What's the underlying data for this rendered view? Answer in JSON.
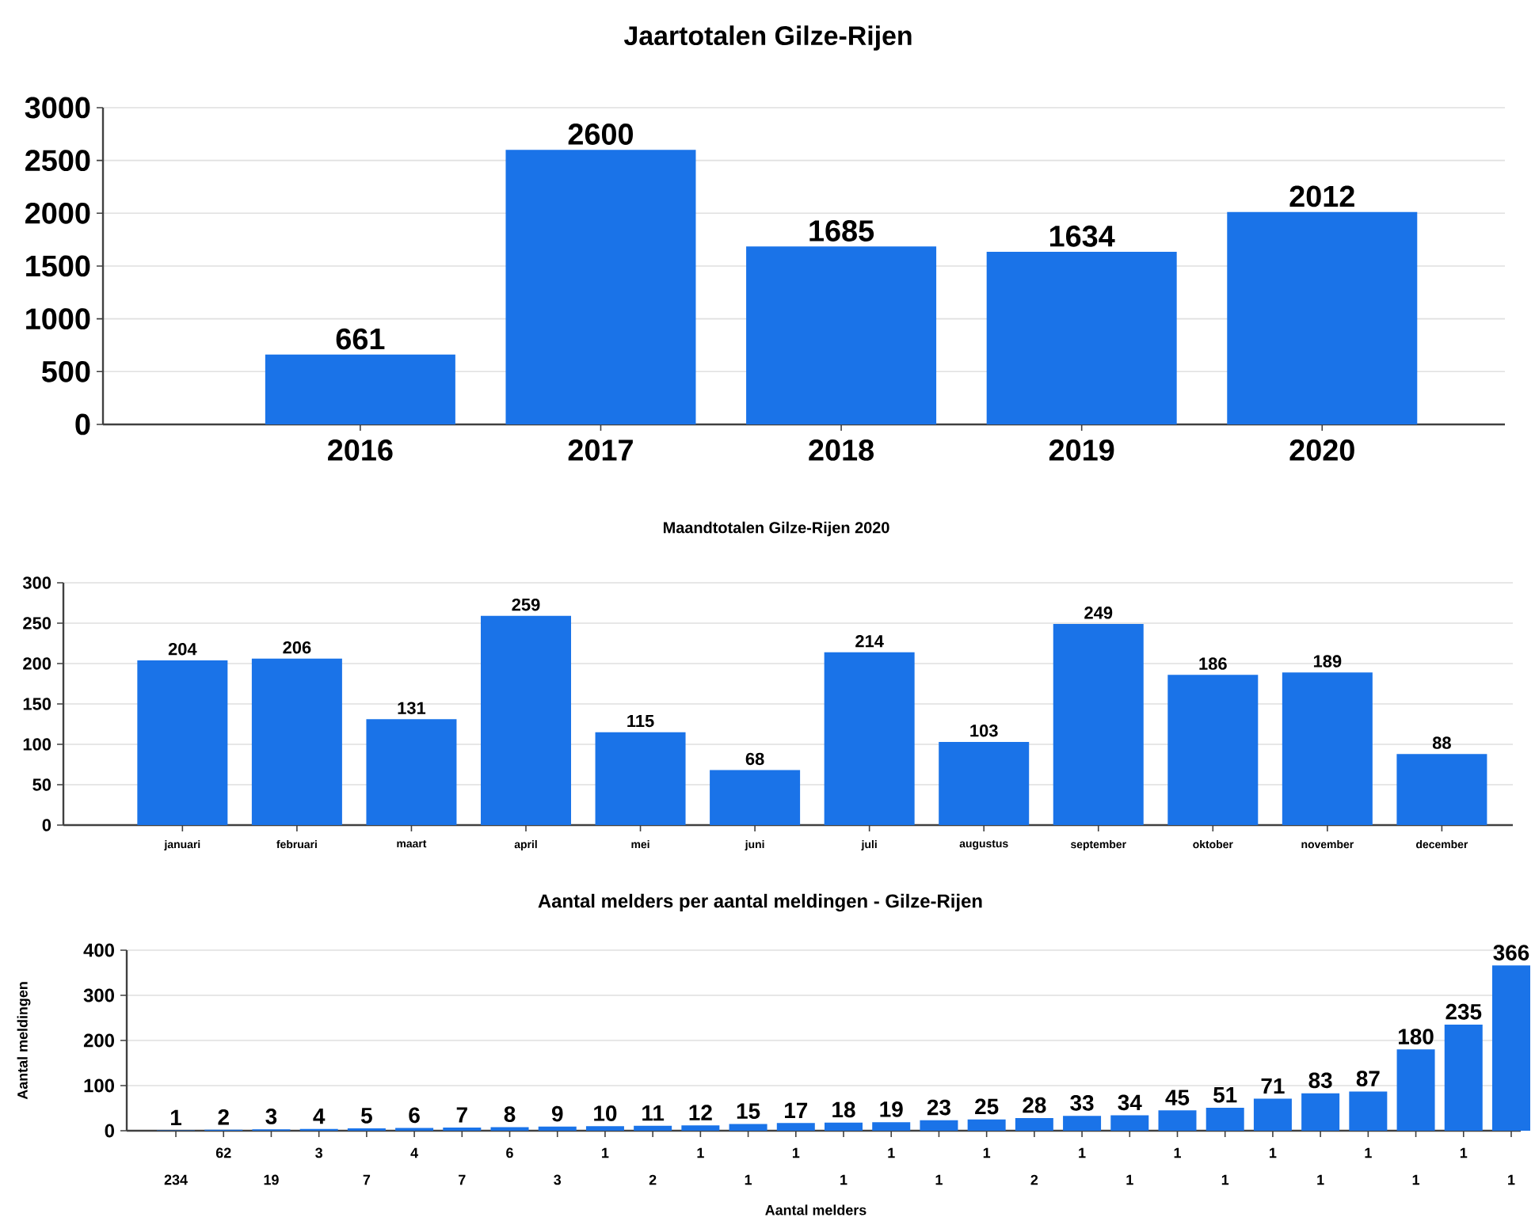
{
  "chart_data": [
    {
      "type": "bar",
      "title": "Jaartotalen Gilze-Rijen",
      "categories": [
        "2016",
        "2017",
        "2018",
        "2019",
        "2020"
      ],
      "values": [
        661,
        2600,
        1685,
        1634,
        2012
      ],
      "color": "#1a73e8",
      "ylim": [
        0,
        3000
      ],
      "yticks": [
        0,
        500,
        1000,
        1500,
        2000,
        2500,
        3000
      ],
      "grid": "y",
      "data_labels": true
    },
    {
      "type": "bar",
      "title": "Maandtotalen Gilze-Rijen 2020",
      "categories": [
        "januari",
        "februari",
        "maart",
        "april",
        "mei",
        "juni",
        "juli",
        "augustus",
        "september",
        "oktober",
        "november",
        "december"
      ],
      "values": [
        204,
        206,
        131,
        259,
        115,
        68,
        214,
        103,
        249,
        186,
        189,
        88
      ],
      "color": "#1a73e8",
      "ylim": [
        0,
        300
      ],
      "yticks": [
        0,
        50,
        100,
        150,
        200,
        250,
        300
      ],
      "grid": "y",
      "data_labels": true
    },
    {
      "type": "bar",
      "title": "Aantal melders per aantal meldingen - Gilze-Rijen",
      "xlabel": "Aantal melders",
      "ylabel": "Aantal meldingen",
      "categories": [
        "234",
        "62",
        "19",
        "3",
        "7",
        "4",
        "7",
        "6",
        "3",
        "1",
        "2",
        "1",
        "1",
        "1",
        "1",
        "1",
        "1",
        "1",
        "2",
        "1",
        "1",
        "1",
        "1",
        "1",
        "1",
        "1",
        "1",
        "1",
        "1"
      ],
      "values": [
        1,
        2,
        3,
        4,
        5,
        6,
        7,
        8,
        9,
        10,
        11,
        12,
        15,
        17,
        18,
        19,
        23,
        25,
        28,
        33,
        34,
        45,
        51,
        71,
        83,
        87,
        180,
        235,
        366
      ],
      "color": "#1a73e8",
      "ylim": [
        0,
        400
      ],
      "yticks": [
        0,
        100,
        200,
        300,
        400
      ],
      "grid": "y",
      "data_labels": true
    }
  ]
}
